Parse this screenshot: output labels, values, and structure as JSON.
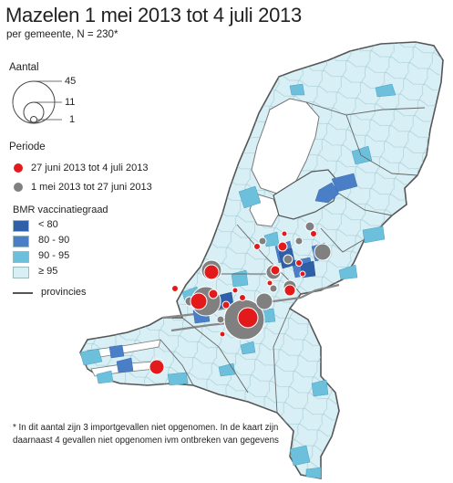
{
  "title": "Mazelen 1 mei 2013 tot 4 juli 2013",
  "subtitle": "per gemeente, N = 230*",
  "size_legend": {
    "heading": "Aantal",
    "values": [
      "45",
      "11",
      "1"
    ]
  },
  "period_legend": {
    "heading": "Periode",
    "items": [
      {
        "label": "27 juni 2013 tot 4 juli 2013",
        "color": "#e31a1c"
      },
      {
        "label": "1 mei 2013 tot 27 juni 2013",
        "color": "#808080"
      }
    ]
  },
  "vaccination_legend": {
    "heading": "BMR vaccinatiegraad",
    "classes": [
      {
        "label": "< 80",
        "color": "#2f5fa8"
      },
      {
        "label": "80 - 90",
        "color": "#4a7fc8"
      },
      {
        "label": "90 - 95",
        "color": "#6cc0dc"
      },
      {
        "label": "≥ 95",
        "color": "#d8f0f5"
      }
    ]
  },
  "province_legend": {
    "label": "provincies",
    "color": "#555555"
  },
  "footnote": "* In dit aantal zijn 3 importgevallen niet opgenomen. In de kaart zijn daarnaast 4 gevallen niet opgenomen ivm ontbreken van gegevens"
}
